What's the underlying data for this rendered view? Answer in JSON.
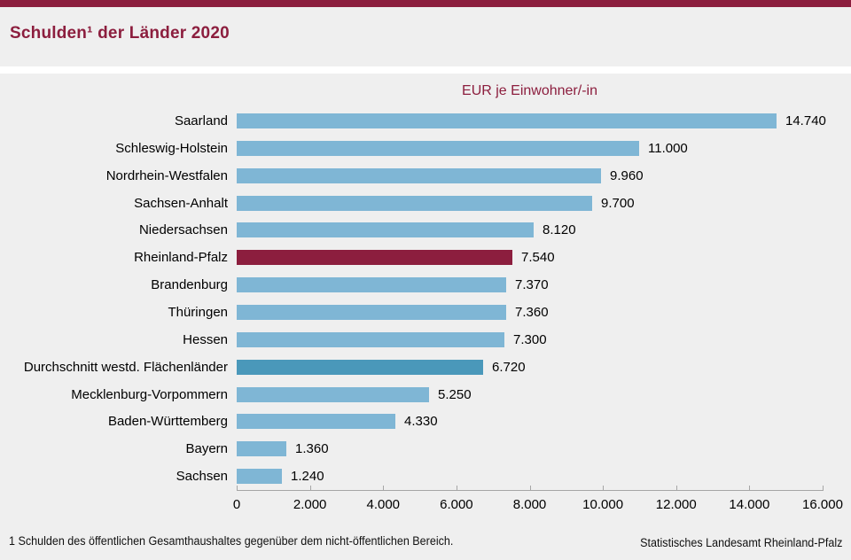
{
  "page": {
    "title": "Schulden¹ der Länder 2020",
    "accent_color": "#8c1e3e",
    "background_color": "#efefef"
  },
  "chart_data": {
    "type": "bar",
    "orientation": "horizontal",
    "title": "EUR je Einwohner/-in",
    "xlabel": "",
    "ylabel": "",
    "xlim": [
      0,
      16000
    ],
    "grid": false,
    "legend": "none",
    "categories": [
      "Saarland",
      "Schleswig-Holstein",
      "Nordrhein-Westfalen",
      "Sachsen-Anhalt",
      "Niedersachsen",
      "Rheinland-Pfalz",
      "Brandenburg",
      "Thüringen",
      "Hessen",
      "Durchschnitt westd. Flächenländer",
      "Mecklenburg-Vorpommern",
      "Baden-Württemberg",
      "Bayern",
      "Sachsen"
    ],
    "values": [
      14740,
      11000,
      9960,
      9700,
      8120,
      7540,
      7370,
      7360,
      7300,
      6720,
      5250,
      4330,
      1360,
      1240
    ],
    "value_labels": [
      "14.740",
      "11.000",
      "9.960",
      "9.700",
      "8.120",
      "7.540",
      "7.370",
      "7.360",
      "7.300",
      "6.720",
      "5.250",
      "4.330",
      "1.360",
      "1.240"
    ],
    "bar_color_keys": [
      "default",
      "default",
      "default",
      "default",
      "default",
      "highlight",
      "default",
      "default",
      "default",
      "average",
      "default",
      "default",
      "default",
      "default"
    ],
    "colors": {
      "default": "#7fb6d5",
      "highlight": "#8c1e3e",
      "average": "#4a98ba"
    },
    "highlight_category": "Rheinland-Pfalz",
    "average_category": "Durchschnitt westd. Flächenländer",
    "x_ticks": [
      0,
      2000,
      4000,
      6000,
      8000,
      10000,
      12000,
      14000,
      16000
    ],
    "x_tick_labels": [
      "0",
      "2.000",
      "4.000",
      "6.000",
      "8.000",
      "10.000",
      "12.000",
      "14.000",
      "16.000"
    ]
  },
  "footer": {
    "footnote": "1 Schulden des öffentlichen Gesamthaushaltes gegenüber dem nicht-öffentlichen Bereich.",
    "source": "Statistisches Landesamt Rheinland-Pfalz"
  }
}
